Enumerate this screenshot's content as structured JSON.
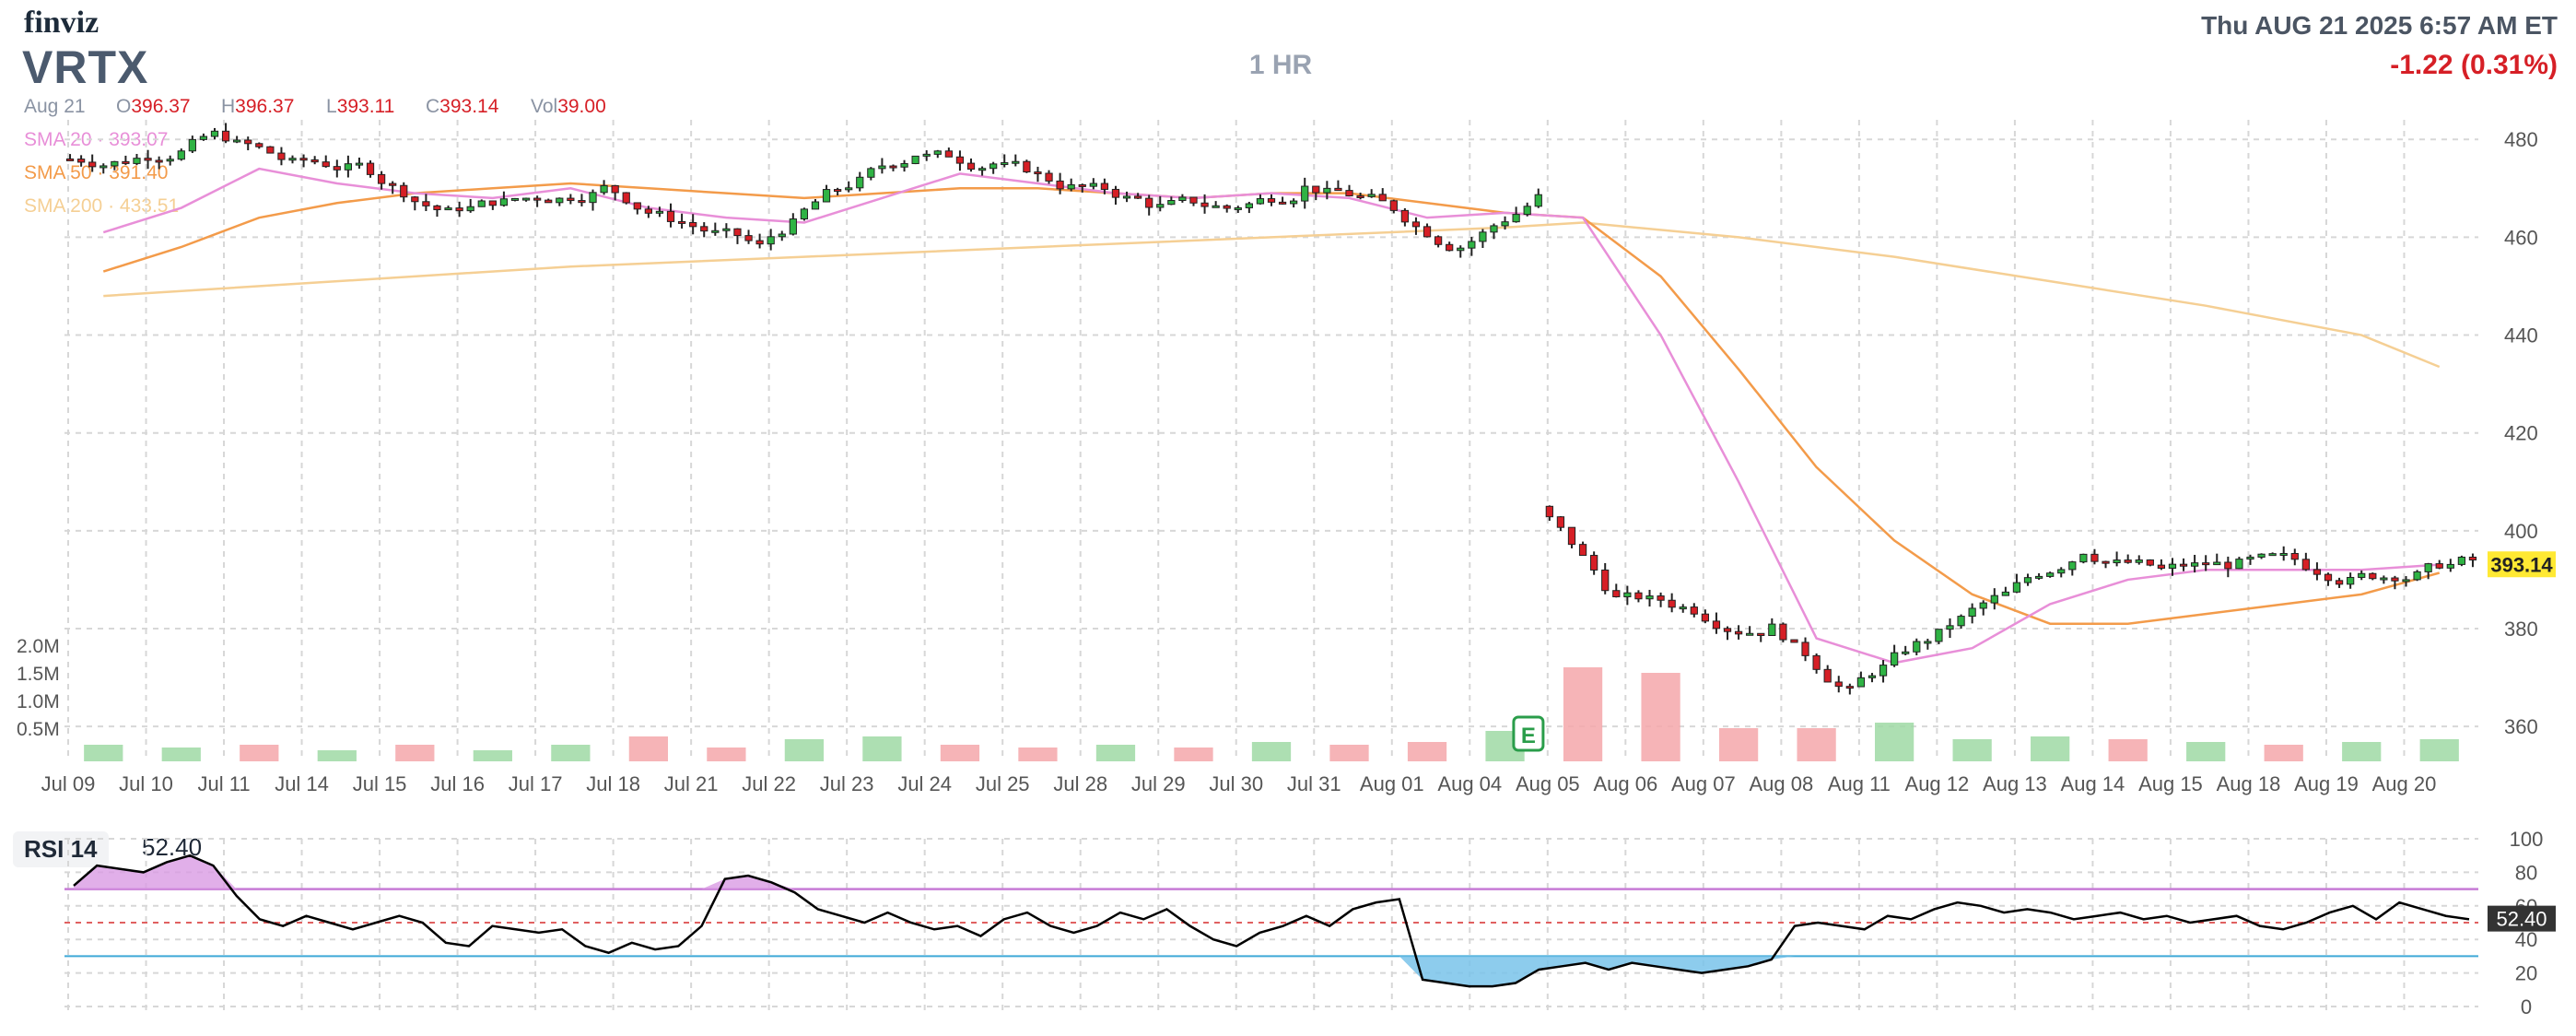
{
  "header": {
    "logo": "finviz",
    "ticker": "VRTX",
    "timeframe": "1 HR",
    "datetime": "Thu AUG 21 2025 6:57 AM ET",
    "change": "-1.22 (0.31%)"
  },
  "ohlc": {
    "date": "Aug 21",
    "o_label": "O",
    "o": "396.37",
    "h_label": "H",
    "h": "396.37",
    "l_label": "L",
    "l": "393.11",
    "c_label": "C",
    "c": "393.14",
    "vol_label": "Vol",
    "vol": "39.00"
  },
  "sma_legend": [
    {
      "label": "SMA 20",
      "value": "393.07",
      "color": "#e88fd8"
    },
    {
      "label": "SMA 50",
      "value": "391.40",
      "color": "#f39b4a"
    },
    {
      "label": "SMA 200",
      "value": "433.51",
      "color": "#f5cf94"
    }
  ],
  "volume_axis": [
    "2.0M",
    "1.5M",
    "1.0M",
    "0.5M"
  ],
  "earnings_marker": "E",
  "rsi": {
    "label": "RSI 14",
    "value": "52.40"
  },
  "colors": {
    "up": "#2fb344",
    "down": "#d61f26",
    "grid": "#d7d7d7",
    "rsi_line": "#000000",
    "overbought": "#c77bd6",
    "oversold": "#3fa9d8",
    "last_price_bg": "#ffe933"
  },
  "chart_data": [
    {
      "type": "candlestick",
      "title": "VRTX 1 HR",
      "x_ticks": [
        "Jul 09",
        "Jul 10",
        "Jul 11",
        "Jul 14",
        "Jul 15",
        "Jul 16",
        "Jul 17",
        "Jul 18",
        "Jul 21",
        "Jul 22",
        "Jul 23",
        "Jul 24",
        "Jul 25",
        "Jul 28",
        "Jul 29",
        "Jul 30",
        "Jul 31",
        "Aug 01",
        "Aug 04",
        "Aug 05",
        "Aug 06",
        "Aug 07",
        "Aug 08",
        "Aug 11",
        "Aug 12",
        "Aug 13",
        "Aug 14",
        "Aug 15",
        "Aug 18",
        "Aug 19",
        "Aug 20"
      ],
      "y_ticks": [
        480,
        460,
        440,
        420,
        400,
        380,
        360
      ],
      "ylim": [
        354,
        484
      ],
      "last_price": "393.14",
      "daily_close": [
        476,
        481,
        475,
        474,
        465,
        468,
        470,
        463,
        458,
        470,
        477,
        475,
        470,
        467,
        466,
        470,
        467,
        458,
        468,
        386,
        384,
        380,
        367,
        378,
        387,
        396,
        392,
        393,
        392,
        391,
        394
      ],
      "sma20": [
        [
          0,
          461
        ],
        [
          1,
          466
        ],
        [
          2,
          474
        ],
        [
          3,
          471
        ],
        [
          4,
          469
        ],
        [
          5,
          468
        ],
        [
          6,
          470
        ],
        [
          7,
          466
        ],
        [
          8,
          464
        ],
        [
          9,
          463
        ],
        [
          10,
          468
        ],
        [
          11,
          473
        ],
        [
          12,
          471
        ],
        [
          13,
          469
        ],
        [
          14,
          468
        ],
        [
          15,
          469
        ],
        [
          16,
          468
        ],
        [
          17,
          464
        ],
        [
          18,
          465
        ],
        [
          19,
          464
        ],
        [
          20,
          440
        ],
        [
          21,
          410
        ],
        [
          22,
          378
        ],
        [
          23,
          373
        ],
        [
          24,
          376
        ],
        [
          25,
          385
        ],
        [
          26,
          390
        ],
        [
          27,
          392
        ],
        [
          28,
          392
        ],
        [
          29,
          392
        ],
        [
          30,
          393.07
        ]
      ],
      "sma50": [
        [
          0,
          453
        ],
        [
          1,
          458
        ],
        [
          2,
          464
        ],
        [
          3,
          467
        ],
        [
          4,
          469
        ],
        [
          5,
          470
        ],
        [
          6,
          471
        ],
        [
          7,
          470
        ],
        [
          8,
          469
        ],
        [
          9,
          468
        ],
        [
          10,
          469
        ],
        [
          11,
          470
        ],
        [
          12,
          470
        ],
        [
          13,
          469
        ],
        [
          14,
          468
        ],
        [
          15,
          469
        ],
        [
          16,
          469
        ],
        [
          17,
          467
        ],
        [
          18,
          465
        ],
        [
          19,
          464
        ],
        [
          20,
          452
        ],
        [
          21,
          433
        ],
        [
          22,
          413
        ],
        [
          23,
          398
        ],
        [
          24,
          387
        ],
        [
          25,
          381
        ],
        [
          26,
          381
        ],
        [
          27,
          383
        ],
        [
          28,
          385
        ],
        [
          29,
          387
        ],
        [
          30,
          391.4
        ]
      ],
      "sma200": [
        [
          0,
          448
        ],
        [
          3,
          451
        ],
        [
          6,
          454
        ],
        [
          9,
          456
        ],
        [
          12,
          458
        ],
        [
          15,
          460
        ],
        [
          18,
          462
        ],
        [
          19,
          463
        ],
        [
          21,
          460
        ],
        [
          23,
          456
        ],
        [
          25,
          451
        ],
        [
          27,
          446
        ],
        [
          29,
          440
        ],
        [
          30,
          433.51
        ]
      ]
    },
    {
      "type": "bar",
      "title": "Volume",
      "categories": [
        "Jul 09",
        "Jul 10",
        "Jul 11",
        "Jul 14",
        "Jul 15",
        "Jul 16",
        "Jul 17",
        "Jul 18",
        "Jul 21",
        "Jul 22",
        "Jul 23",
        "Jul 24",
        "Jul 25",
        "Jul 28",
        "Jul 29",
        "Jul 30",
        "Jul 31",
        "Aug 01",
        "Aug 04",
        "Aug 05",
        "Aug 06",
        "Aug 07",
        "Aug 08",
        "Aug 11",
        "Aug 12",
        "Aug 13",
        "Aug 14",
        "Aug 15",
        "Aug 18",
        "Aug 19",
        "Aug 20"
      ],
      "values_millions": [
        0.3,
        0.25,
        0.3,
        0.2,
        0.3,
        0.2,
        0.3,
        0.45,
        0.25,
        0.4,
        0.45,
        0.3,
        0.25,
        0.3,
        0.25,
        0.35,
        0.3,
        0.35,
        0.55,
        1.7,
        1.6,
        0.6,
        0.6,
        0.7,
        0.4,
        0.45,
        0.4,
        0.35,
        0.3,
        0.35,
        0.4
      ],
      "up_down": [
        "up",
        "up",
        "down",
        "up",
        "down",
        "up",
        "up",
        "down",
        "down",
        "up",
        "up",
        "down",
        "down",
        "up",
        "down",
        "up",
        "down",
        "down",
        "up",
        "down",
        "down",
        "down",
        "down",
        "up",
        "up",
        "up",
        "down",
        "up",
        "down",
        "up",
        "up"
      ]
    },
    {
      "type": "line",
      "title": "RSI 14",
      "y_ticks": [
        100,
        80,
        60,
        40,
        20,
        0
      ],
      "ylim": [
        0,
        100
      ],
      "overbought": 70,
      "oversold": 30,
      "values": [
        72,
        84,
        82,
        80,
        86,
        90,
        84,
        66,
        52,
        48,
        54,
        50,
        46,
        50,
        54,
        50,
        38,
        36,
        48,
        46,
        44,
        46,
        36,
        32,
        38,
        34,
        36,
        48,
        76,
        78,
        74,
        68,
        58,
        54,
        50,
        56,
        50,
        46,
        48,
        42,
        52,
        56,
        48,
        44,
        48,
        56,
        52,
        58,
        48,
        40,
        36,
        44,
        48,
        54,
        48,
        58,
        62,
        64,
        16,
        14,
        12,
        12,
        14,
        22,
        24,
        26,
        22,
        26,
        24,
        22,
        20,
        22,
        24,
        28,
        48,
        50,
        48,
        46,
        54,
        52,
        58,
        62,
        60,
        56,
        58,
        56,
        52,
        54,
        56,
        52,
        54,
        50,
        52,
        54,
        48,
        46,
        50,
        56,
        60,
        52,
        62,
        58,
        54,
        52
      ]
    }
  ]
}
